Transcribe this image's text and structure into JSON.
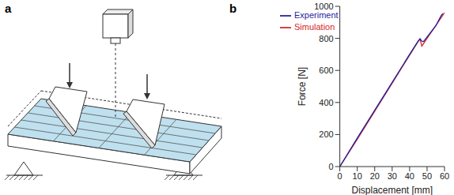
{
  "diagram": {
    "label": "a"
  },
  "chart_data": {
    "type": "line",
    "title": "b",
    "x_label": "Displacement [mm]",
    "y_label": "Force [N]",
    "xlim": [
      0,
      60
    ],
    "xticks": [
      0,
      10,
      20,
      30,
      40,
      50,
      60
    ],
    "ylim": [
      0,
      1000
    ],
    "yticks": [
      0,
      200,
      400,
      600,
      800,
      1000
    ],
    "grid": false,
    "legend": "upper left",
    "series": [
      {
        "name": "Simulation",
        "color": "#d62728",
        "x": [
          0,
          10,
          20,
          30,
          40,
          45,
          46,
          47,
          50,
          55,
          60
        ],
        "values": [
          0,
          170,
          345,
          520,
          695,
          782,
          795,
          752,
          800,
          880,
          960
        ]
      },
      {
        "name": "Experiment",
        "color": "#1f1f9e",
        "x": [
          0,
          10,
          20,
          30,
          40,
          45,
          46,
          47,
          48,
          50,
          55,
          58,
          59
        ],
        "values": [
          0,
          178,
          352,
          525,
          700,
          785,
          798,
          782,
          780,
          808,
          878,
          940,
          955
        ]
      }
    ]
  }
}
